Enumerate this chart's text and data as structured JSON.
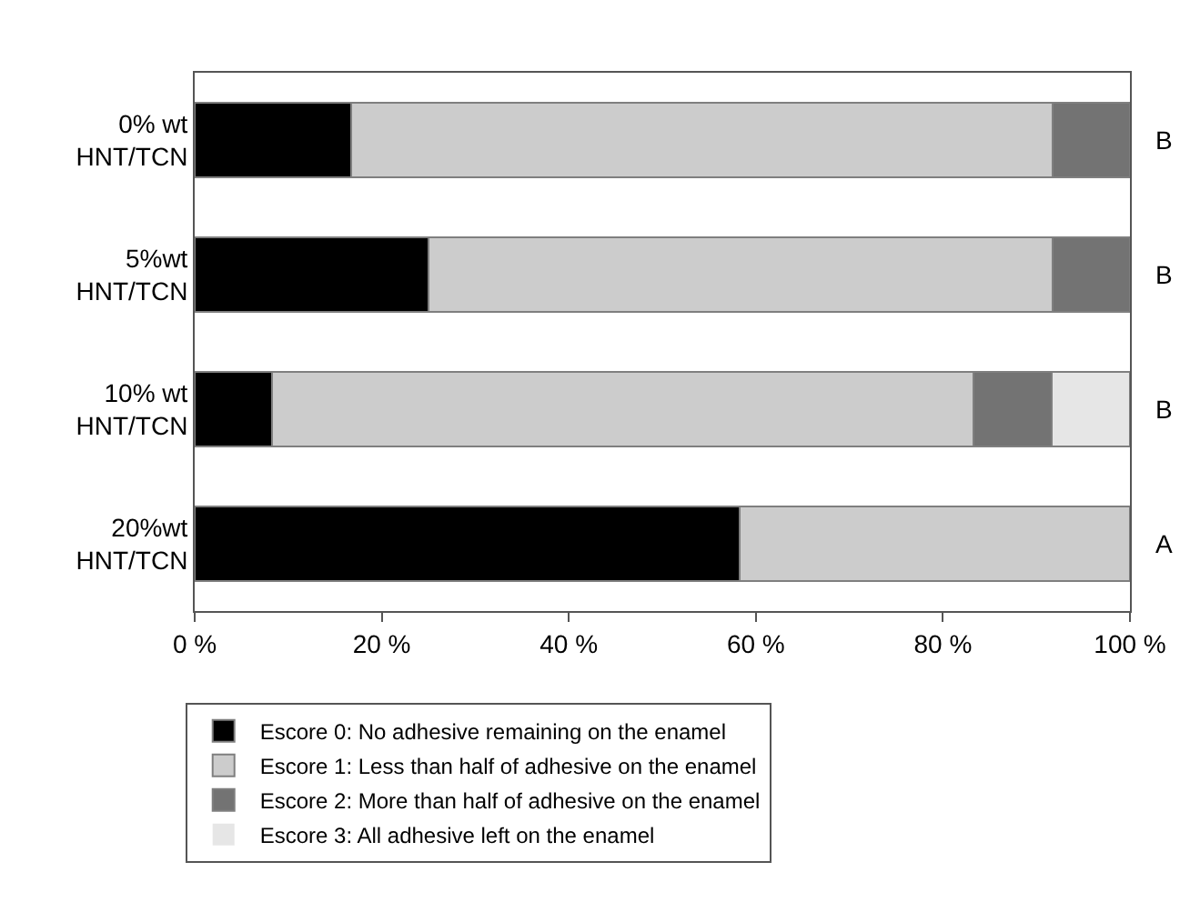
{
  "chart_data": {
    "type": "bar",
    "orientation": "horizontal",
    "stacked": true,
    "categories": [
      "0% wt\nHNT/TCN",
      "5%wt\nHNT/TCN",
      "10% wt\nHNT/TCN",
      "20%wt\nHNT/TCN"
    ],
    "series": [
      {
        "name": "Escore 0: No adhesive remaining on the enamel",
        "color": "#000000",
        "values": [
          16.7,
          25,
          8.3,
          58.3
        ]
      },
      {
        "name": "Escore 1: Less than half of adhesive on the enamel",
        "color": "#cccccc",
        "values": [
          75,
          66.7,
          75,
          41.7
        ]
      },
      {
        "name": "Escore 2: More than half of adhesive on the enamel",
        "color": "#737373",
        "values": [
          8.3,
          8.3,
          8.3,
          0
        ]
      },
      {
        "name": "Escore 3: All adhesive left on the enamel",
        "color": "#e6e6e6",
        "values": [
          0,
          0,
          8.4,
          0
        ]
      }
    ],
    "xlim": [
      0,
      100
    ],
    "xticks": [
      {
        "value": 0,
        "label": "0 %"
      },
      {
        "value": 20,
        "label": "20 %"
      },
      {
        "value": 40,
        "label": "40 %"
      },
      {
        "value": 60,
        "label": "60 %"
      },
      {
        "value": 80,
        "label": "80 %"
      },
      {
        "value": 100,
        "label": "100 %"
      }
    ],
    "annotations": [
      "B",
      "B",
      "B",
      "A"
    ],
    "legend": "bottom"
  }
}
